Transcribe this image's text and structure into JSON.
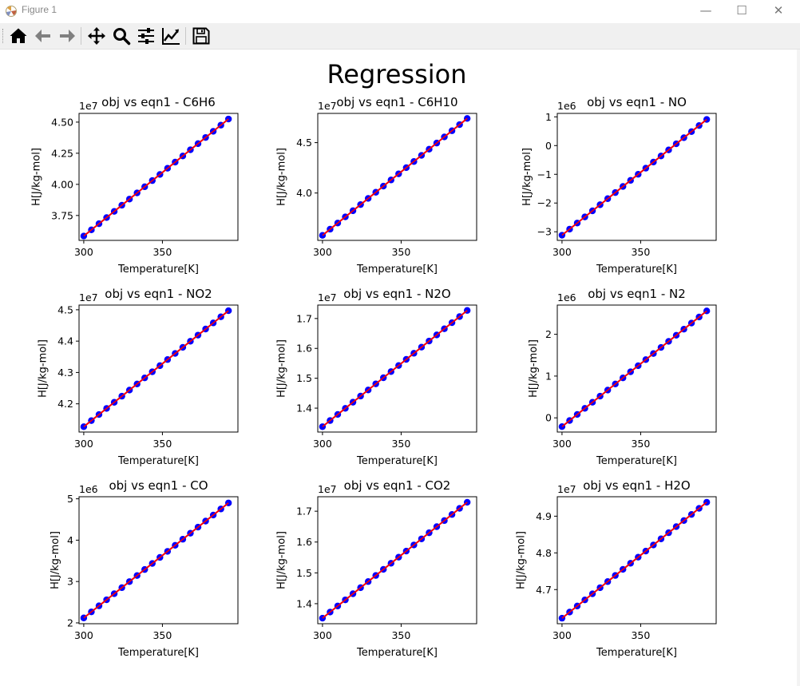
{
  "window": {
    "title": "Figure 1",
    "minimize_glyph": "—",
    "maximize_glyph": "☐",
    "close_glyph": "✕"
  },
  "toolbar": {
    "buttons": [
      {
        "name": "home",
        "icon": "home-icon"
      },
      {
        "name": "back",
        "icon": "arrow-left-icon"
      },
      {
        "name": "forward",
        "icon": "arrow-right-icon"
      },
      {
        "name": "pan",
        "icon": "move-icon"
      },
      {
        "name": "zoom",
        "icon": "zoom-icon"
      },
      {
        "name": "configure-subplots",
        "icon": "sliders-icon"
      },
      {
        "name": "edit-axis",
        "icon": "line-chart-icon"
      },
      {
        "name": "save",
        "icon": "floppy-disk-icon"
      }
    ]
  },
  "figure": {
    "title": "Regression",
    "colors": {
      "points": "#0000ff",
      "fit_line": "#ff0000"
    }
  },
  "chart_data": [
    {
      "type": "scatter",
      "title": "obj vs eqn1 - C6H6",
      "xlabel": "Temperature[K]",
      "ylabel": "H[J/kg-mol]",
      "offset_text": "1e7",
      "xlim": [
        297,
        398
      ],
      "ylim": [
        3.55,
        4.57
      ],
      "xticks": [
        "300",
        "350"
      ],
      "xtick_values": [
        300,
        350
      ],
      "yticks": [
        "3.75",
        "4.00",
        "4.25",
        "4.50"
      ],
      "ytick_values": [
        3.75,
        4.0,
        4.25,
        4.5
      ],
      "x_range": [
        300,
        392
      ],
      "n_points": 20,
      "y_range": [
        3.585,
        4.525
      ]
    },
    {
      "type": "scatter",
      "title": "obj vs eqn1 - C6H10",
      "xlabel": "Temperature[K]",
      "ylabel": "H[J/kg-mol]",
      "offset_text": "1e7",
      "xlim": [
        297,
        398
      ],
      "ylim": [
        3.53,
        4.79
      ],
      "xticks": [
        "300",
        "350"
      ],
      "xtick_values": [
        300,
        350
      ],
      "yticks": [
        "4.0",
        "4.5"
      ],
      "ytick_values": [
        4.0,
        4.5
      ],
      "x_range": [
        300,
        392
      ],
      "n_points": 20,
      "y_range": [
        3.58,
        4.74
      ]
    },
    {
      "type": "scatter",
      "title": "obj vs eqn1 - NO",
      "xlabel": "Temperature[K]",
      "ylabel": "H[J/kg-mol]",
      "offset_text": "1e6",
      "xlim": [
        297,
        398
      ],
      "ylim": [
        -3.3,
        1.12
      ],
      "xticks": [
        "300",
        "350"
      ],
      "xtick_values": [
        300,
        350
      ],
      "yticks": [
        "−3",
        "−2",
        "−1",
        "0",
        "1"
      ],
      "ytick_values": [
        -3,
        -2,
        -1,
        0,
        1
      ],
      "x_range": [
        300,
        392
      ],
      "n_points": 20,
      "y_range": [
        -3.12,
        0.91
      ]
    },
    {
      "type": "scatter",
      "title": "obj vs eqn1 - NO2",
      "xlabel": "Temperature[K]",
      "ylabel": "H[J/kg-mol]",
      "offset_text": "1e7",
      "xlim": [
        297,
        398
      ],
      "ylim": [
        4.11,
        4.515
      ],
      "xticks": [
        "300",
        "350"
      ],
      "xtick_values": [
        300,
        350
      ],
      "yticks": [
        "4.2",
        "4.3",
        "4.4",
        "4.5"
      ],
      "ytick_values": [
        4.2,
        4.3,
        4.4,
        4.5
      ],
      "x_range": [
        300,
        392
      ],
      "n_points": 20,
      "y_range": [
        4.127,
        4.497
      ]
    },
    {
      "type": "scatter",
      "title": "obj vs eqn1 - N2O",
      "xlabel": "Temperature[K]",
      "ylabel": "H[J/kg-mol]",
      "offset_text": "1e7",
      "xlim": [
        297,
        398
      ],
      "ylim": [
        1.32,
        1.745
      ],
      "xticks": [
        "300",
        "350"
      ],
      "xtick_values": [
        300,
        350
      ],
      "yticks": [
        "1.4",
        "1.5",
        "1.6",
        "1.7"
      ],
      "ytick_values": [
        1.4,
        1.5,
        1.6,
        1.7
      ],
      "x_range": [
        300,
        392
      ],
      "n_points": 20,
      "y_range": [
        1.338,
        1.727
      ]
    },
    {
      "type": "scatter",
      "title": "obj vs eqn1 - N2",
      "xlabel": "Temperature[K]",
      "ylabel": "H[J/kg-mol]",
      "offset_text": "1e6",
      "xlim": [
        297,
        398
      ],
      "ylim": [
        -0.34,
        2.7
      ],
      "xticks": [
        "300",
        "350"
      ],
      "xtick_values": [
        300,
        350
      ],
      "yticks": [
        "0",
        "1",
        "2"
      ],
      "ytick_values": [
        0,
        1,
        2
      ],
      "x_range": [
        300,
        392
      ],
      "n_points": 20,
      "y_range": [
        -0.21,
        2.56
      ]
    },
    {
      "type": "scatter",
      "title": "obj vs eqn1 - CO",
      "xlabel": "Temperature[K]",
      "ylabel": "H[J/kg-mol]",
      "offset_text": "1e6",
      "xlim": [
        297,
        398
      ],
      "ylim": [
        1.98,
        5.05
      ],
      "xticks": [
        "300",
        "350"
      ],
      "xtick_values": [
        300,
        350
      ],
      "yticks": [
        "2",
        "3",
        "4",
        "5"
      ],
      "ytick_values": [
        2,
        3,
        4,
        5
      ],
      "x_range": [
        300,
        392
      ],
      "n_points": 20,
      "y_range": [
        2.12,
        4.9
      ]
    },
    {
      "type": "scatter",
      "title": "obj vs eqn1 - CO2",
      "xlabel": "Temperature[K]",
      "ylabel": "H[J/kg-mol]",
      "offset_text": "1e7",
      "xlim": [
        297,
        398
      ],
      "ylim": [
        1.335,
        1.747
      ],
      "xticks": [
        "300",
        "350"
      ],
      "xtick_values": [
        300,
        350
      ],
      "yticks": [
        "1.4",
        "1.5",
        "1.6",
        "1.7"
      ],
      "ytick_values": [
        1.4,
        1.5,
        1.6,
        1.7
      ],
      "x_range": [
        300,
        392
      ],
      "n_points": 20,
      "y_range": [
        1.353,
        1.729
      ]
    },
    {
      "type": "scatter",
      "title": "obj vs eqn1 - H2O",
      "xlabel": "Temperature[K]",
      "ylabel": "H[J/kg-mol]",
      "offset_text": "1e7",
      "xlim": [
        297,
        398
      ],
      "ylim": [
        4.607,
        4.953
      ],
      "xticks": [
        "300",
        "350"
      ],
      "xtick_values": [
        300,
        350
      ],
      "yticks": [
        "4.7",
        "4.8",
        "4.9"
      ],
      "ytick_values": [
        4.7,
        4.8,
        4.9
      ],
      "x_range": [
        300,
        392
      ],
      "n_points": 20,
      "y_range": [
        4.622,
        4.938
      ]
    }
  ]
}
